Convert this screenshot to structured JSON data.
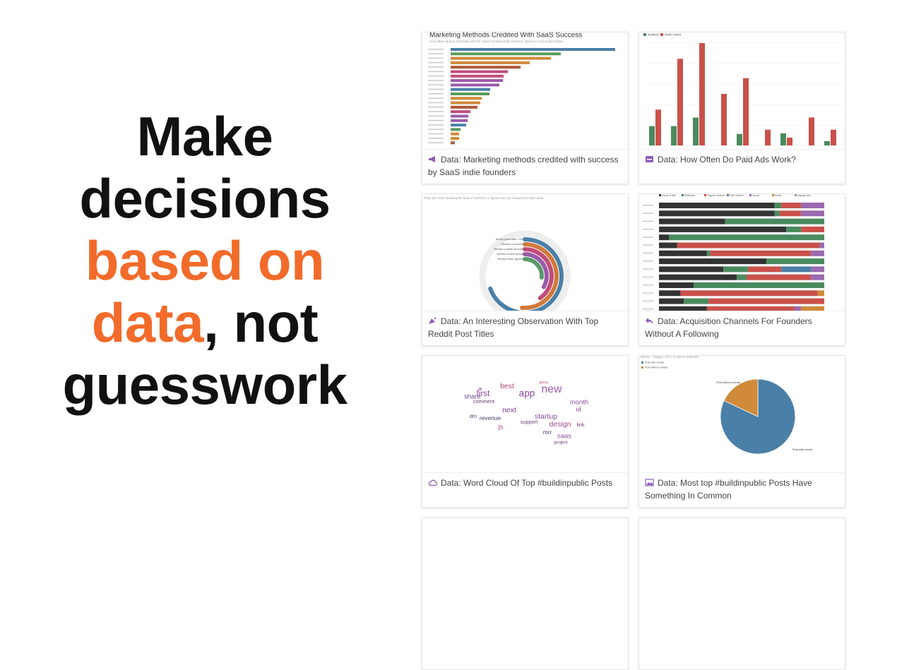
{
  "headline": {
    "part1": "Make decisions",
    "part2": "based on data",
    "part3": ", not guesswork"
  },
  "cards": [
    {
      "caption": "Data: Marketing methods credited with success by SaaS indie founders",
      "chart": {
        "type": "hbar",
        "title": "Marketing Methods Credited With SaaS Success",
        "subtitle": "How often various channels work for SaaS founders/Indie Hackers. Based on real world stories.",
        "values": [
          233,
          156,
          142,
          112,
          99,
          81,
          75,
          74,
          69,
          56,
          55,
          44,
          42,
          38,
          28,
          25,
          24,
          22,
          14,
          12,
          12,
          6
        ],
        "colors": [
          "#4a7fa8",
          "#5a9a5a",
          "#d08a3a",
          "#d08a3a",
          "#b0593a",
          "#c04d7a",
          "#c04d7a",
          "#9a5aaa",
          "#9a5aaa",
          "#4a7fa8",
          "#5a9a5a",
          "#d08a3a",
          "#d08a3a",
          "#b0593a",
          "#c04d7a",
          "#9a5aaa",
          "#9a5aaa",
          "#4a7fa8",
          "#5a9a5a",
          "#d08a3a",
          "#d08a3a",
          "#b0593a"
        ]
      }
    },
    {
      "caption": "Data: How Often Do Paid Ads Work?",
      "chart": {
        "type": "grouped",
        "series": [
          {
            "name": "Worked",
            "color": "#4a8a5f",
            "values": [
              27,
              27,
              39,
              0,
              16,
              0,
              17,
              0,
              6
            ]
          },
          {
            "name": "Didn't Work",
            "color": "#c9514a",
            "values": [
              50,
              121,
              143,
              72,
              94,
              22,
              11,
              39,
              22
            ]
          }
        ]
      }
    },
    {
      "caption": "Data: An Interesting Observation With Top Reddit Post Titles",
      "chart": {
        "type": "radial",
        "subtitle": "Polar bar chart showing the kind of numbers or figures the top r/SaaS post titles have",
        "categories": [
          "All top posts titles: 100",
          "Mention a number",
          "Mention a dollar amount",
          "Mention a time period",
          "Mention other figures"
        ],
        "values": [
          100,
          74,
          58,
          48,
          38
        ],
        "colors": [
          "#4a7fa8",
          "#d07a3a",
          "#c04d7a",
          "#9a5aaa",
          "#5a9a6a"
        ]
      }
    },
    {
      "caption": "Data: Acquisition Channels For Founders Without A Following",
      "chart": {
        "type": "stacked",
        "series": [
          {
            "name": "Direct Traffic",
            "color": "#333333",
            "values": [
              70,
              70,
              40,
              77,
              6,
              11,
              29,
              65,
              39,
              47,
              21,
              13,
              15,
              29
            ]
          },
          {
            "name": "Referrals",
            "color": "#4a8a5f",
            "values": [
              4,
              3,
              60,
              9,
              94,
              0,
              2,
              35,
              15,
              6,
              79,
              0,
              15,
              0
            ]
          },
          {
            "name": "Organic Search",
            "color": "#c9514a",
            "values": [
              12,
              13,
              0,
              14,
              0,
              86,
              61,
              0,
              20,
              39,
              0,
              83,
              70,
              53
            ]
          },
          {
            "name": "Paid Search",
            "color": "#4a7fa8",
            "values": [
              0,
              0,
              0,
              0,
              0,
              0,
              0,
              0,
              18,
              0,
              0,
              0,
              0,
              0
            ]
          },
          {
            "name": "Social",
            "color": "#9a6ab0",
            "values": [
              14,
              14,
              0,
              0,
              0,
              3,
              8,
              0,
              8,
              8,
              0,
              0,
              0,
              4
            ]
          },
          {
            "name": "Email",
            "color": "#d08a3a",
            "values": [
              0,
              0,
              0,
              0,
              0,
              0,
              0,
              0,
              0,
              0,
              0,
              4,
              0,
              14
            ]
          },
          {
            "name": "Display Ads",
            "color": "#999999",
            "values": [
              0,
              0,
              0,
              0,
              0,
              0,
              0,
              0,
              0,
              0,
              0,
              0,
              0,
              0
            ]
          }
        ]
      }
    },
    {
      "caption": "Data: Word Cloud Of Top #buildinpublic Posts",
      "chart": {
        "type": "cloud",
        "words": [
          {
            "text": "best",
            "size": 10,
            "color": "#b04a7e"
          },
          {
            "text": "first",
            "size": 11,
            "color": "#8a4a9e"
          },
          {
            "text": "app",
            "size": 13,
            "color": "#8a4a9e"
          },
          {
            "text": "new",
            "size": 15,
            "color": "#9a5ab0"
          },
          {
            "text": "share",
            "size": 9,
            "color": "#6a4a8a"
          },
          {
            "text": "comment",
            "size": 7,
            "color": "#6a3a7a"
          },
          {
            "text": "next",
            "size": 10,
            "color": "#7a3a8e"
          },
          {
            "text": "month",
            "size": 9,
            "color": "#8a4a9e"
          },
          {
            "text": "startup",
            "size": 10,
            "color": "#8a4a9e"
          },
          {
            "text": "ui",
            "size": 9,
            "color": "#7a3a8e"
          },
          {
            "text": "dm",
            "size": 7,
            "color": "#5a3a7a"
          },
          {
            "text": "revenue",
            "size": 8,
            "color": "#4a3a6a"
          },
          {
            "text": "support",
            "size": 7,
            "color": "#6a3a7a"
          },
          {
            "text": "design",
            "size": 10,
            "color": "#9a4a8e"
          },
          {
            "text": "link",
            "size": 7,
            "color": "#7a3a7a"
          },
          {
            "text": "js",
            "size": 9,
            "color": "#b04a7e"
          },
          {
            "text": "mrr",
            "size": 8,
            "color": "#4a3a6a"
          },
          {
            "text": "saas",
            "size": 9,
            "color": "#8a4a9e"
          },
          {
            "text": "project",
            "size": 6,
            "color": "#6a3a7a"
          },
          {
            "text": "demo",
            "size": 5,
            "color": "#c04a7a"
          },
          {
            "text": "ai",
            "size": 6,
            "color": "#6a4a8a"
          }
        ]
      }
    },
    {
      "caption": "Data: Most top #buildinpublic Posts Have Something In Common",
      "chart": {
        "type": "pie",
        "subtitle": "Media = images, GIFs or videos attached",
        "series": [
          {
            "name": "Post with media",
            "color": "#4a7fa8",
            "value": 82
          },
          {
            "name": "Post without media",
            "color": "#d08a3a",
            "value": 18
          }
        ]
      }
    },
    {},
    {}
  ]
}
